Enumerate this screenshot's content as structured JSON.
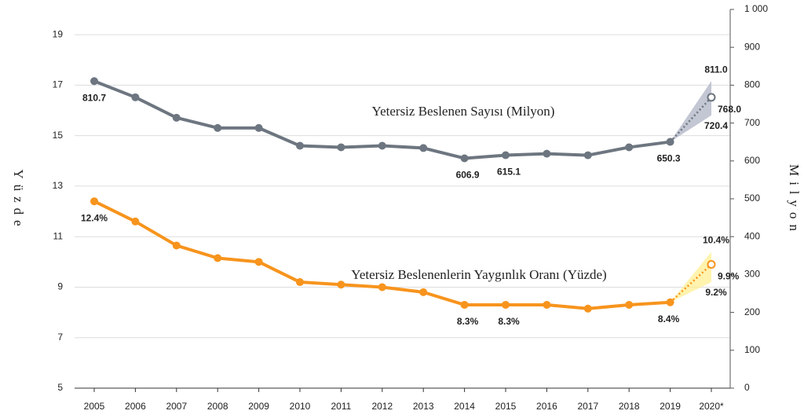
{
  "chart_data": {
    "type": "line",
    "y_label": "Yüzde",
    "y2_label": "Milyon",
    "categories": [
      "2005",
      "2006",
      "2007",
      "2008",
      "2009",
      "2010",
      "2011",
      "2012",
      "2013",
      "2014",
      "2015",
      "2016",
      "2017",
      "2018",
      "2019",
      "2020*"
    ],
    "ylim": [
      5,
      20
    ],
    "yticks": [
      5,
      7,
      9,
      11,
      13,
      15,
      17,
      19
    ],
    "y2lim": [
      0,
      1000
    ],
    "y2ticks": [
      0,
      100,
      200,
      300,
      400,
      500,
      600,
      700,
      800,
      900,
      {
        "value": 1000,
        "label": "1 000"
      }
    ],
    "grid": true,
    "series": [
      {
        "name": "Yetersiz Beslenen Sayısı (Milyon)",
        "color": "#6d7680",
        "axis": "y2",
        "projection": true,
        "values": [
          810.7,
          768,
          714,
          687,
          687,
          640,
          636,
          640,
          634,
          606.9,
          615.1,
          619,
          615,
          636,
          650.3,
          768.0
        ],
        "value_labels": [
          "810.7",
          null,
          null,
          null,
          null,
          null,
          null,
          null,
          null,
          "606.9",
          "615.1",
          null,
          null,
          null,
          "650.3",
          "768.0"
        ],
        "range": [
          720.4,
          811.0
        ],
        "range_labels": [
          "720.4",
          "811.0"
        ],
        "range_color": "#b4b8c8"
      },
      {
        "name": "Yetersiz Beslenenlerin Yaygınlık Oranı (Yüzde)",
        "color": "#f7941d",
        "axis": "y",
        "projection": true,
        "values": [
          12.4,
          11.6,
          10.65,
          10.15,
          10.0,
          9.2,
          9.1,
          9.0,
          8.8,
          8.3,
          8.3,
          8.3,
          8.15,
          8.3,
          8.4,
          9.9
        ],
        "value_labels": [
          "12.4%",
          null,
          null,
          null,
          null,
          null,
          null,
          null,
          null,
          "8.3%",
          "8.3%",
          null,
          null,
          null,
          "8.4%",
          "9.9%"
        ],
        "range": [
          9.2,
          10.4
        ],
        "range_labels": [
          "9.2%",
          "10.4%"
        ],
        "range_color": "#fff09a"
      }
    ]
  }
}
